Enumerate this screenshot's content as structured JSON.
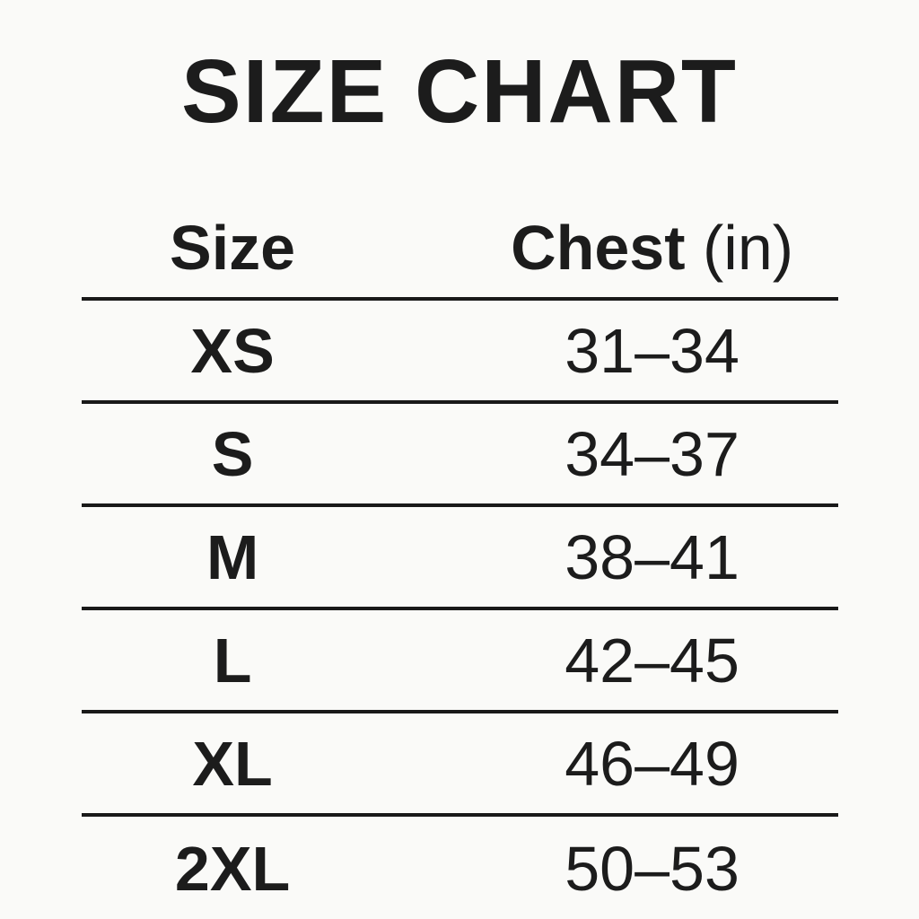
{
  "page": {
    "title": "SIZE CHART"
  },
  "table": {
    "header": {
      "size_label": "Size",
      "chest_label": "Chest",
      "chest_unit": " (in)"
    },
    "rows": [
      {
        "size": "XS",
        "chest": "31–34"
      },
      {
        "size": "S",
        "chest": "34–37"
      },
      {
        "size": "M",
        "chest": "38–41"
      },
      {
        "size": "L",
        "chest": "42–45"
      },
      {
        "size": "XL",
        "chest": "46–49"
      },
      {
        "size": "2XL",
        "chest": "50–53"
      }
    ]
  },
  "colors": {
    "background": "#fafaf8",
    "text": "#1c1c1c",
    "rule": "#191919"
  },
  "chart_data": {
    "type": "table",
    "title": "SIZE CHART",
    "columns": [
      "Size",
      "Chest (in)"
    ],
    "rows": [
      [
        "XS",
        "31–34"
      ],
      [
        "S",
        "34–37"
      ],
      [
        "M",
        "38–41"
      ],
      [
        "L",
        "42–45"
      ],
      [
        "XL",
        "46–49"
      ],
      [
        "2XL",
        "50–53"
      ]
    ],
    "layout_hints": {
      "grid": "horizontal rules between rows, none after last row",
      "alignment": "both columns centered"
    }
  }
}
